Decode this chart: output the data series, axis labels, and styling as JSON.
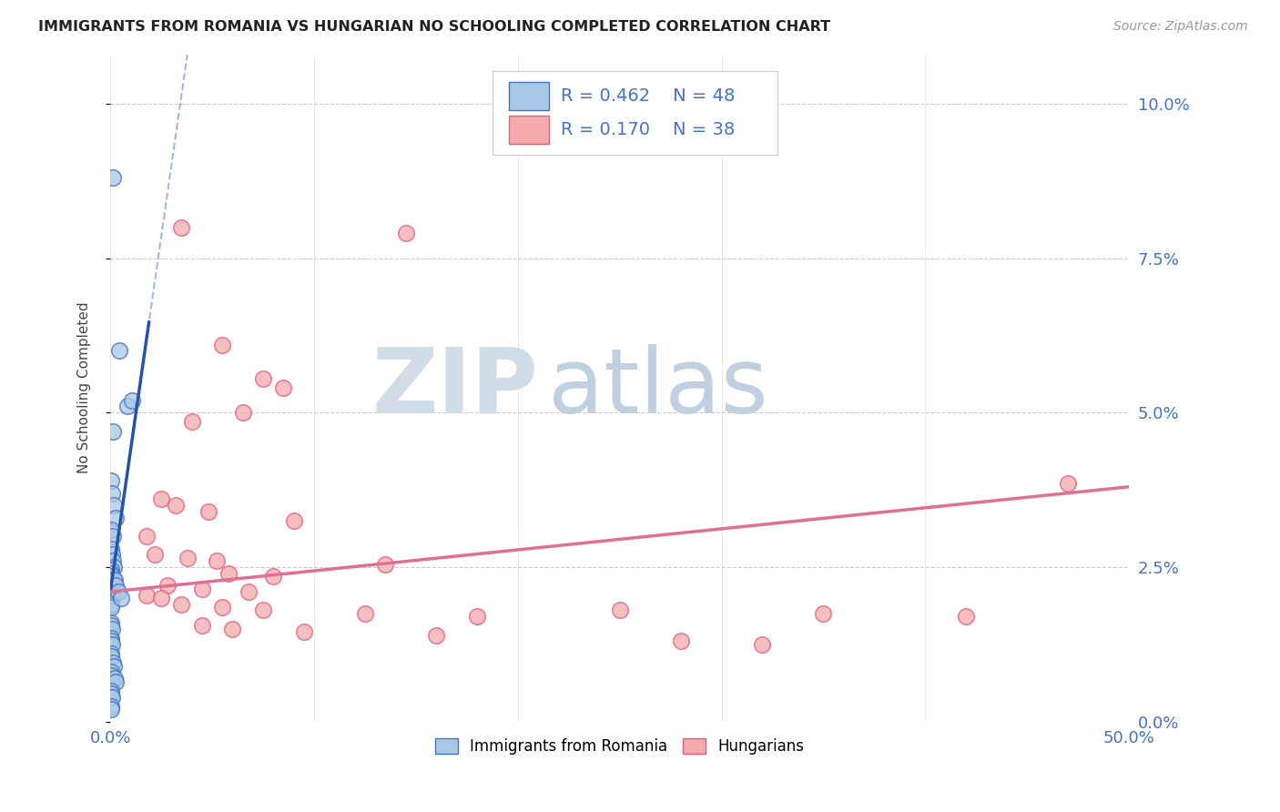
{
  "title": "IMMIGRANTS FROM ROMANIA VS HUNGARIAN NO SCHOOLING COMPLETED CORRELATION CHART",
  "source": "Source: ZipAtlas.com",
  "ylabel": "No Schooling Completed",
  "ytick_vals": [
    0.0,
    2.5,
    5.0,
    7.5,
    10.0
  ],
  "ytick_labels": [
    "0.0%",
    "2.5%",
    "5.0%",
    "7.5%",
    "10.0%"
  ],
  "xlim": [
    0.0,
    50.0
  ],
  "ylim": [
    0.0,
    10.8
  ],
  "legend_romania_R": "0.462",
  "legend_romania_N": "48",
  "legend_hungarian_R": "0.170",
  "legend_hungarian_N": "38",
  "blue_fill": "#a8c8e8",
  "blue_edge": "#4472c4",
  "pink_fill": "#f4aaaa",
  "pink_edge": "#e06080",
  "blue_line": "#2255aa",
  "pink_line": "#e07090",
  "blue_scatter": [
    [
      0.13,
      8.8
    ],
    [
      0.45,
      6.0
    ],
    [
      0.85,
      5.1
    ],
    [
      1.05,
      5.2
    ],
    [
      0.15,
      4.7
    ],
    [
      0.05,
      3.9
    ],
    [
      0.1,
      3.7
    ],
    [
      0.18,
      3.5
    ],
    [
      0.25,
      3.3
    ],
    [
      0.05,
      3.1
    ],
    [
      0.12,
      3.0
    ],
    [
      0.04,
      2.8
    ],
    [
      0.08,
      2.7
    ],
    [
      0.12,
      2.6
    ],
    [
      0.18,
      2.5
    ],
    [
      0.02,
      2.45
    ],
    [
      0.06,
      2.4
    ],
    [
      0.1,
      2.35
    ],
    [
      0.16,
      2.3
    ],
    [
      0.02,
      2.2
    ],
    [
      0.06,
      2.15
    ],
    [
      0.1,
      2.1
    ],
    [
      0.14,
      2.05
    ],
    [
      0.02,
      1.9
    ],
    [
      0.06,
      1.85
    ],
    [
      0.2,
      2.3
    ],
    [
      0.28,
      2.2
    ],
    [
      0.4,
      2.1
    ],
    [
      0.55,
      2.0
    ],
    [
      0.02,
      1.6
    ],
    [
      0.06,
      1.55
    ],
    [
      0.1,
      1.5
    ],
    [
      0.02,
      1.35
    ],
    [
      0.06,
      1.3
    ],
    [
      0.1,
      1.25
    ],
    [
      0.02,
      1.1
    ],
    [
      0.06,
      1.05
    ],
    [
      0.12,
      0.95
    ],
    [
      0.18,
      0.9
    ],
    [
      0.02,
      0.8
    ],
    [
      0.06,
      0.75
    ],
    [
      0.2,
      0.7
    ],
    [
      0.28,
      0.65
    ],
    [
      0.02,
      0.5
    ],
    [
      0.06,
      0.45
    ],
    [
      0.1,
      0.4
    ],
    [
      0.02,
      0.25
    ],
    [
      0.06,
      0.2
    ]
  ],
  "pink_scatter": [
    [
      3.5,
      8.0
    ],
    [
      14.5,
      7.9
    ],
    [
      5.5,
      6.1
    ],
    [
      7.5,
      5.55
    ],
    [
      8.5,
      5.4
    ],
    [
      6.5,
      5.0
    ],
    [
      4.0,
      4.85
    ],
    [
      4.8,
      3.4
    ],
    [
      9.0,
      3.25
    ],
    [
      2.5,
      3.6
    ],
    [
      3.2,
      3.5
    ],
    [
      1.8,
      3.0
    ],
    [
      2.2,
      2.7
    ],
    [
      3.8,
      2.65
    ],
    [
      5.2,
      2.6
    ],
    [
      13.5,
      2.55
    ],
    [
      5.8,
      2.4
    ],
    [
      8.0,
      2.35
    ],
    [
      2.8,
      2.2
    ],
    [
      4.5,
      2.15
    ],
    [
      6.8,
      2.1
    ],
    [
      1.8,
      2.05
    ],
    [
      2.5,
      2.0
    ],
    [
      3.5,
      1.9
    ],
    [
      5.5,
      1.85
    ],
    [
      7.5,
      1.8
    ],
    [
      12.5,
      1.75
    ],
    [
      18.0,
      1.7
    ],
    [
      4.5,
      1.55
    ],
    [
      6.0,
      1.5
    ],
    [
      9.5,
      1.45
    ],
    [
      16.0,
      1.4
    ],
    [
      25.0,
      1.8
    ],
    [
      35.0,
      1.75
    ],
    [
      42.0,
      1.7
    ],
    [
      28.0,
      1.3
    ],
    [
      32.0,
      1.25
    ],
    [
      47.0,
      3.85
    ]
  ],
  "watermark_zip": "ZIP",
  "watermark_atlas": "atlas",
  "watermark_color_zip": "#d0dce8",
  "watermark_color_atlas": "#c0d0e0",
  "background_color": "#ffffff",
  "grid_color": "#cccccc",
  "tick_color": "#4472c4"
}
